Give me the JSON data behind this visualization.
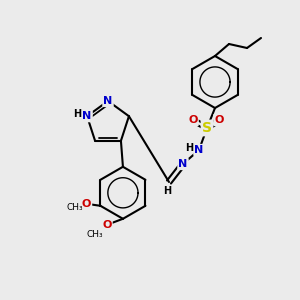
{
  "bg_color": "#ebebeb",
  "bond_color": "#000000",
  "bond_width": 1.5,
  "atom_colors": {
    "N": "#0000cc",
    "O": "#cc0000",
    "S": "#cccc00",
    "C": "#000000",
    "H": "#000000"
  },
  "font_size_atom": 8,
  "figsize": [
    3.0,
    3.0
  ],
  "dpi": 100
}
